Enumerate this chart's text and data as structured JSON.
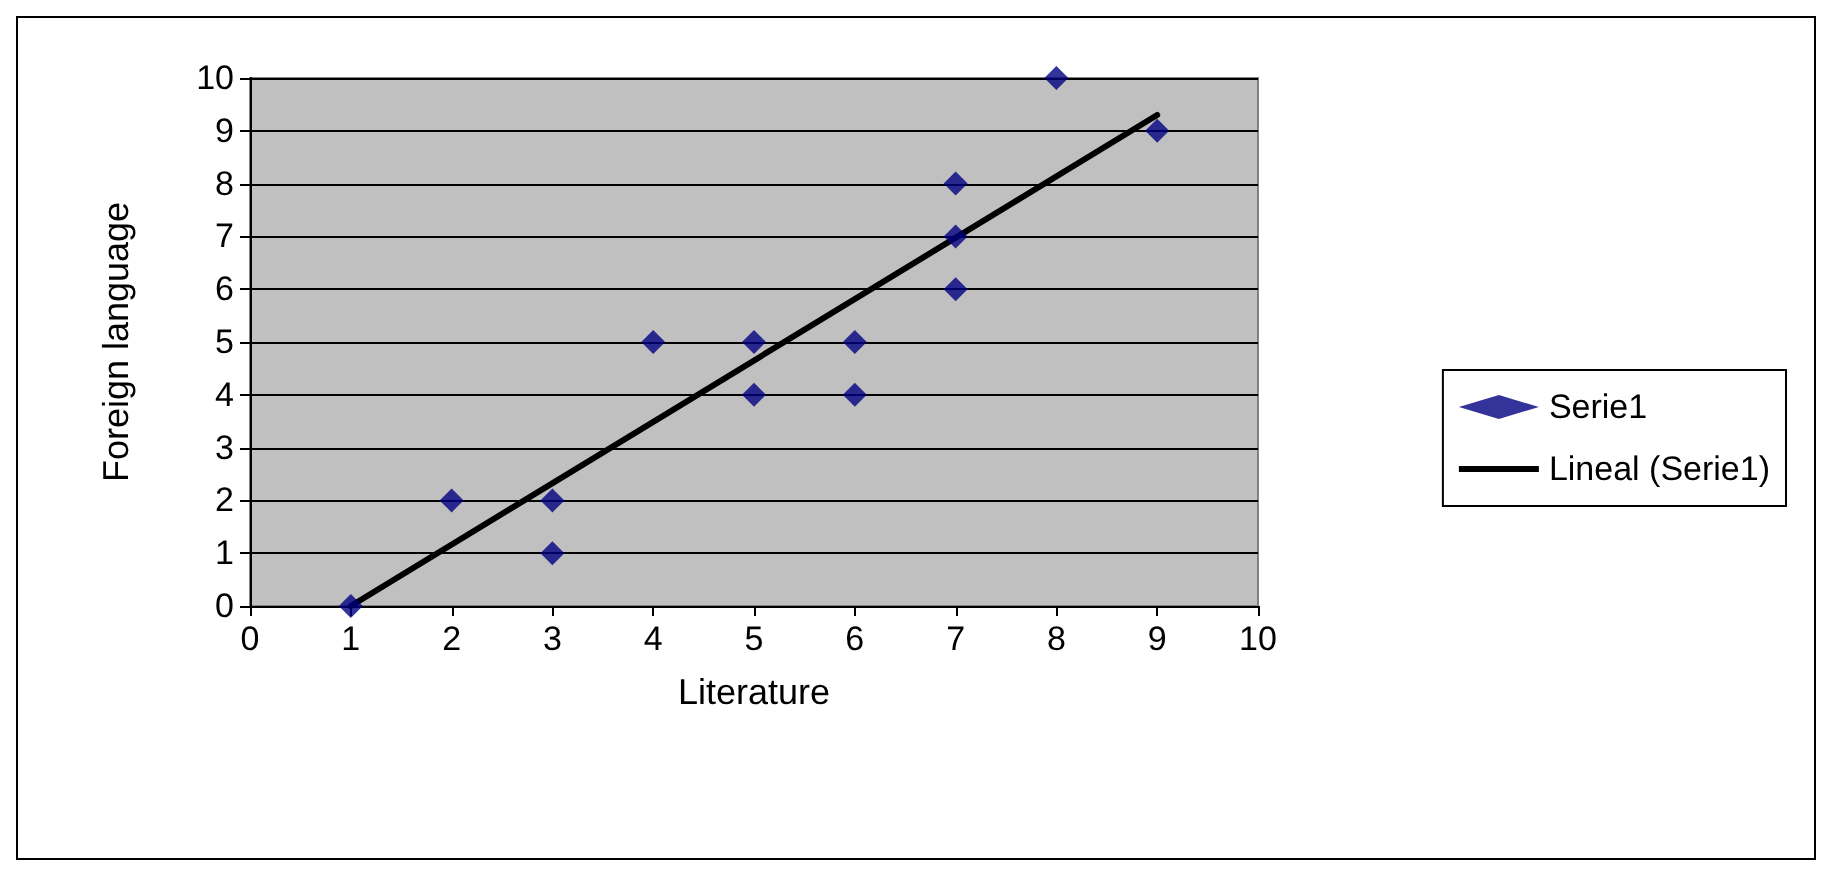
{
  "chart_data": {
    "type": "scatter",
    "xlabel": "Literature",
    "ylabel": "Foreign language",
    "xlim": [
      0,
      10
    ],
    "ylim": [
      0,
      10
    ],
    "xticks": [
      0,
      1,
      2,
      3,
      4,
      5,
      6,
      7,
      8,
      9,
      10
    ],
    "yticks": [
      0,
      1,
      2,
      3,
      4,
      5,
      6,
      7,
      8,
      9,
      10
    ],
    "grid": "y",
    "legend": "right",
    "series": [
      {
        "name": "Serie1",
        "color": "#000080",
        "marker": "diamond",
        "x": [
          1,
          2,
          3,
          3,
          4,
          5,
          5,
          6,
          6,
          7,
          7,
          7,
          8,
          9
        ],
        "values": [
          0,
          2,
          2,
          1,
          5,
          5,
          4,
          5,
          4,
          8,
          7,
          6,
          10,
          9
        ]
      },
      {
        "name": "Lineal (Serie1)",
        "type": "line",
        "color": "#000000",
        "marker": "none",
        "line_style": "solid",
        "x": [
          1,
          9
        ],
        "values": [
          0,
          9.3
        ]
      }
    ]
  }
}
